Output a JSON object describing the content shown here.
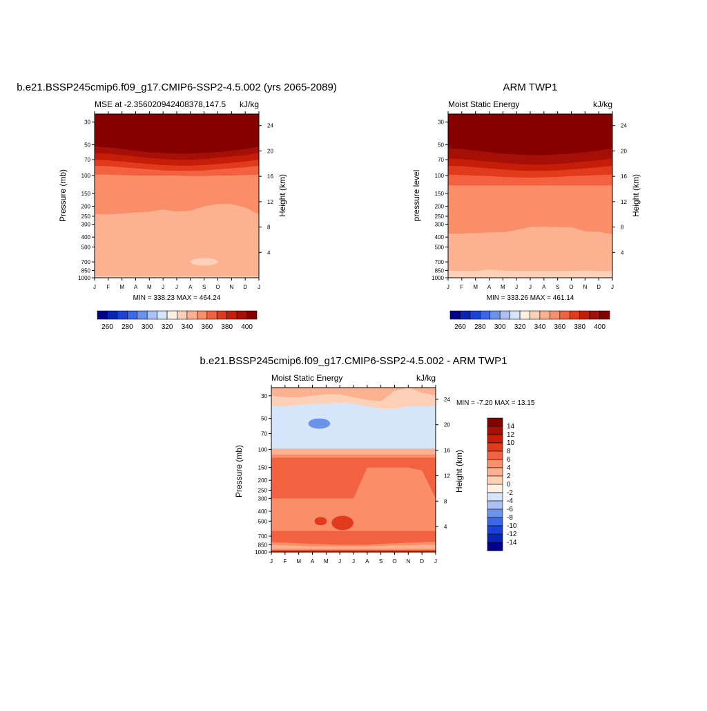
{
  "chart_data": [
    {
      "type": "heatmap",
      "title": "b.e21.BSSP245cmip6.f09_g17.CMIP6-SSP2-4.5.002 (yrs 2065-2089)",
      "subtitle_left": "MSE at -2.356020942408378,147.5",
      "subtitle_right": "kJ/kg",
      "ylabel": "Pressure (mb)",
      "ylabel_right": "Height (km)",
      "x_ticks": [
        "J",
        "F",
        "M",
        "A",
        "M",
        "J",
        "J",
        "A",
        "S",
        "O",
        "N",
        "D",
        "J"
      ],
      "y_ticks": [
        "30",
        "50",
        "70",
        "100",
        "150",
        "200",
        "250",
        "300",
        "400",
        "500",
        "700",
        "850",
        "1000"
      ],
      "y_ticks_right": [
        "24",
        "20",
        "16",
        "12",
        "8",
        "4"
      ],
      "stats": "MIN = 338.23 MAX = 464.24",
      "colorbar_ticks": [
        "260",
        "280",
        "300",
        "320",
        "340",
        "360",
        "380",
        "400"
      ],
      "colors": [
        "#00008c",
        "#0b24b8",
        "#1a42d6",
        "#3a68e8",
        "#6b93ea",
        "#a9c1f4",
        "#d6e6fa",
        "#fff0e2",
        "#fdd1b8",
        "#fcb191",
        "#f98e68",
        "#f26140",
        "#e23a1c",
        "#c51d08",
        "#a50f05",
        "#870000"
      ],
      "levels": [
        260,
        270,
        280,
        290,
        300,
        310,
        320,
        330,
        340,
        350,
        360,
        370,
        380,
        390,
        400
      ],
      "months": [
        1,
        2,
        3,
        4,
        5,
        6,
        7,
        8,
        9,
        10,
        11,
        12,
        13
      ],
      "bands": [
        {
          "level": 340,
          "boundary_mb": [
            970,
            970,
            970,
            970,
            970,
            970,
            970,
            970,
            970,
            970,
            970,
            970,
            970
          ],
          "island": {
            "from_month": 8,
            "to_month": 10,
            "top_mb": 640,
            "bottom_mb": 760
          }
        },
        {
          "level": 350,
          "boundary_mb": [
            240,
            240,
            235,
            230,
            225,
            215,
            225,
            220,
            200,
            190,
            190,
            205,
            240
          ]
        },
        {
          "level": 360,
          "boundary_mb": [
            98,
            98,
            99,
            100,
            100,
            100,
            100,
            101,
            101,
            100,
            100,
            99,
            98
          ]
        },
        {
          "level": 370,
          "boundary_mb": [
            80,
            81,
            83,
            85,
            87,
            89,
            90,
            90,
            89,
            87,
            85,
            83,
            80
          ]
        },
        {
          "level": 380,
          "boundary_mb": [
            70,
            71,
            73,
            75,
            77,
            79,
            80,
            80,
            79,
            77,
            75,
            73,
            70
          ]
        },
        {
          "level": 390,
          "boundary_mb": [
            60,
            61,
            63,
            65,
            67,
            69,
            70,
            70,
            69,
            67,
            65,
            63,
            60
          ]
        },
        {
          "level": 400,
          "boundary_mb": [
            52,
            53,
            55,
            57,
            59,
            60,
            61,
            61,
            60,
            59,
            57,
            55,
            52
          ]
        }
      ]
    },
    {
      "type": "heatmap",
      "title": "ARM TWP1",
      "subtitle_left": "Moist Static Energy",
      "subtitle_right": "kJ/kg",
      "ylabel": "pressure level",
      "ylabel_right": "Height (km)",
      "x_ticks": [
        "J",
        "F",
        "M",
        "A",
        "M",
        "J",
        "J",
        "A",
        "S",
        "O",
        "N",
        "D",
        "J"
      ],
      "y_ticks": [
        "30",
        "50",
        "70",
        "100",
        "150",
        "200",
        "250",
        "300",
        "400",
        "500",
        "700",
        "850",
        "1000"
      ],
      "y_ticks_right": [
        "24",
        "20",
        "16",
        "12",
        "8",
        "4"
      ],
      "stats": "MIN = 333.26 MAX = 461.14",
      "colorbar_ticks": [
        "260",
        "280",
        "300",
        "320",
        "340",
        "360",
        "380",
        "400"
      ],
      "colors": [
        "#00008c",
        "#0b24b8",
        "#1a42d6",
        "#3a68e8",
        "#6b93ea",
        "#a9c1f4",
        "#d6e6fa",
        "#fff0e2",
        "#fdd1b8",
        "#fcb191",
        "#f98e68",
        "#f26140",
        "#e23a1c",
        "#c51d08",
        "#a50f05",
        "#870000"
      ],
      "levels": [
        260,
        270,
        280,
        290,
        300,
        310,
        320,
        330,
        340,
        350,
        360,
        370,
        380,
        390,
        400
      ],
      "months": [
        1,
        2,
        3,
        4,
        5,
        6,
        7,
        8,
        9,
        10,
        11,
        12,
        13
      ],
      "bands": [
        {
          "level": 340,
          "boundary_mb": [
            850,
            860,
            860,
            830,
            850,
            860,
            860,
            860,
            860,
            860,
            850,
            860,
            860
          ]
        },
        {
          "level": 350,
          "boundary_mb": [
            370,
            370,
            365,
            360,
            360,
            340,
            320,
            315,
            320,
            320,
            350,
            355,
            375
          ]
        },
        {
          "level": 360,
          "boundary_mb": [
            125,
            125,
            125,
            125,
            125,
            125,
            125,
            125,
            125,
            125,
            125,
            125,
            125
          ]
        },
        {
          "level": 370,
          "boundary_mb": [
            98,
            99,
            100,
            101,
            103,
            104,
            105,
            104,
            103,
            101,
            100,
            99,
            98
          ]
        },
        {
          "level": 380,
          "boundary_mb": [
            80,
            81,
            83,
            85,
            87,
            89,
            90,
            90,
            89,
            87,
            85,
            83,
            80
          ]
        },
        {
          "level": 390,
          "boundary_mb": [
            68,
            69,
            71,
            73,
            75,
            77,
            78,
            78,
            77,
            75,
            73,
            71,
            68
          ]
        },
        {
          "level": 400,
          "boundary_mb": [
            54,
            55,
            57,
            59,
            61,
            62,
            63,
            63,
            62,
            61,
            59,
            57,
            54
          ]
        }
      ]
    },
    {
      "type": "heatmap",
      "title": "b.e21.BSSP245cmip6.f09_g17.CMIP6-SSP2-4.5.002 - ARM TWP1",
      "subtitle_left": "Moist Static Energy",
      "subtitle_right": "kJ/kg",
      "ylabel": "Pressure (mb)",
      "ylabel_right": "Height (km)",
      "x_ticks": [
        "J",
        "F",
        "M",
        "A",
        "M",
        "J",
        "J",
        "A",
        "S",
        "O",
        "N",
        "D",
        "J"
      ],
      "y_ticks": [
        "30",
        "50",
        "70",
        "100",
        "150",
        "200",
        "250",
        "300",
        "400",
        "500",
        "700",
        "850",
        "1000"
      ],
      "y_ticks_right": [
        "24",
        "20",
        "16",
        "12",
        "8",
        "4"
      ],
      "stats": "MIN =  -7.20 MAX =  13.15",
      "colorbar_labels": [
        "14",
        "12",
        "10",
        "8",
        "6",
        "4",
        "2",
        "0",
        "-2",
        "-4",
        "-6",
        "-8",
        "-10",
        "-12",
        "-14"
      ],
      "colors": [
        "#00008c",
        "#0b24b8",
        "#1a42d6",
        "#3a68e8",
        "#6b93ea",
        "#a9c1f4",
        "#d6e6fa",
        "#fff0e2",
        "#fdd1b8",
        "#fcb191",
        "#f98e68",
        "#f26140",
        "#e23a1c",
        "#c51d08",
        "#a50f05",
        "#870000"
      ],
      "levels": [
        -14,
        -12,
        -10,
        -8,
        -6,
        -4,
        -2,
        0,
        2,
        4,
        6,
        8,
        10,
        12,
        14
      ],
      "months": [
        1,
        2,
        3,
        4,
        5,
        6,
        7,
        8,
        9,
        10,
        11,
        12,
        13
      ],
      "regions": [
        {
          "level": 0,
          "value": -4,
          "top_mb": [
            34,
            34,
            34,
            34,
            34,
            34,
            34,
            34,
            34,
            34,
            34,
            34,
            34
          ],
          "bottom_mb": [
            98,
            98,
            98,
            98,
            98,
            98,
            98,
            98,
            98,
            98,
            98,
            98,
            98
          ]
        },
        {
          "level": 0,
          "value": 1,
          "top_mb": [
            25,
            25,
            25,
            25,
            25,
            25,
            25,
            25,
            25,
            25,
            25,
            25,
            25
          ],
          "bottom_mb": [
            38,
            38,
            37,
            36,
            36,
            35,
            36,
            38,
            40,
            40,
            38,
            38,
            38
          ]
        },
        {
          "level": 0,
          "value": 3,
          "top_mb": [
            25,
            25,
            25,
            25,
            25,
            25,
            25,
            25,
            25,
            25,
            25,
            25,
            25
          ],
          "bottom_mb": [
            30,
            31,
            31,
            30,
            29,
            29,
            31,
            33,
            34,
            27,
            25,
            28,
            30
          ]
        },
        {
          "level": 0,
          "value": 2,
          "top_mb": [
            98,
            98,
            98,
            98,
            98,
            98,
            98,
            98,
            98,
            98,
            98,
            98,
            98
          ],
          "bottom_mb": [
            112,
            112,
            112,
            112,
            112,
            112,
            112,
            112,
            112,
            112,
            112,
            112,
            112
          ]
        },
        {
          "level": 0,
          "value": 4,
          "top_mb": [
            112,
            112,
            112,
            112,
            112,
            112,
            112,
            112,
            112,
            112,
            112,
            112,
            112
          ],
          "bottom_mb": [
            120,
            120,
            120,
            120,
            120,
            120,
            120,
            120,
            120,
            120,
            120,
            120,
            120
          ]
        },
        {
          "level": 0,
          "value": 7,
          "top_mb": [
            120,
            120,
            120,
            120,
            120,
            120,
            120,
            120,
            120,
            120,
            120,
            120,
            120
          ],
          "bottom_mb": [
            1000,
            1000,
            1000,
            1000,
            1000,
            1000,
            1000,
            1000,
            1000,
            1000,
            1000,
            1000,
            1000
          ]
        },
        {
          "level": 0,
          "value": 5,
          "top_mb": [
            300,
            300,
            300,
            300,
            300,
            300,
            300,
            150,
            150,
            150,
            150,
            160,
            300
          ],
          "bottom_mb": [
            620,
            620,
            620,
            620,
            620,
            620,
            620,
            620,
            620,
            620,
            620,
            620,
            620
          ]
        },
        {
          "level": 0,
          "value": 5,
          "top_mb": [
            800,
            810,
            820,
            830,
            840,
            850,
            850,
            850,
            830,
            820,
            810,
            800,
            790
          ],
          "bottom_mb": [
            980,
            980,
            980,
            980,
            980,
            980,
            980,
            980,
            980,
            980,
            980,
            980,
            980
          ]
        },
        {
          "level": 0,
          "value": 3,
          "top_mb": [
            850,
            860,
            870,
            880,
            880,
            880,
            880,
            880,
            870,
            860,
            860,
            850,
            850
          ],
          "bottom_mb": [
            930,
            930,
            930,
            930,
            930,
            930,
            930,
            930,
            930,
            930,
            930,
            930,
            930
          ]
        },
        {
          "level": 0,
          "value": 9,
          "top_mb": [
            960,
            960,
            960,
            960,
            960,
            960,
            960,
            960,
            960,
            960,
            960,
            960,
            960
          ],
          "bottom_mb": [
            1000,
            1000,
            1000,
            1000,
            1000,
            1000,
            1000,
            1000,
            1000,
            1000,
            1000,
            1000,
            1000
          ]
        }
      ],
      "blobs": [
        {
          "value": -7,
          "month": 4.5,
          "center_mb": 56,
          "half_months": 0.8,
          "half_decades": 0.05
        },
        {
          "value": 9,
          "month": 6.2,
          "center_mb": 520,
          "half_months": 0.8,
          "half_decades": 0.07
        },
        {
          "value": 9,
          "month": 4.6,
          "center_mb": 500,
          "half_months": 0.45,
          "half_decades": 0.04
        }
      ]
    }
  ]
}
